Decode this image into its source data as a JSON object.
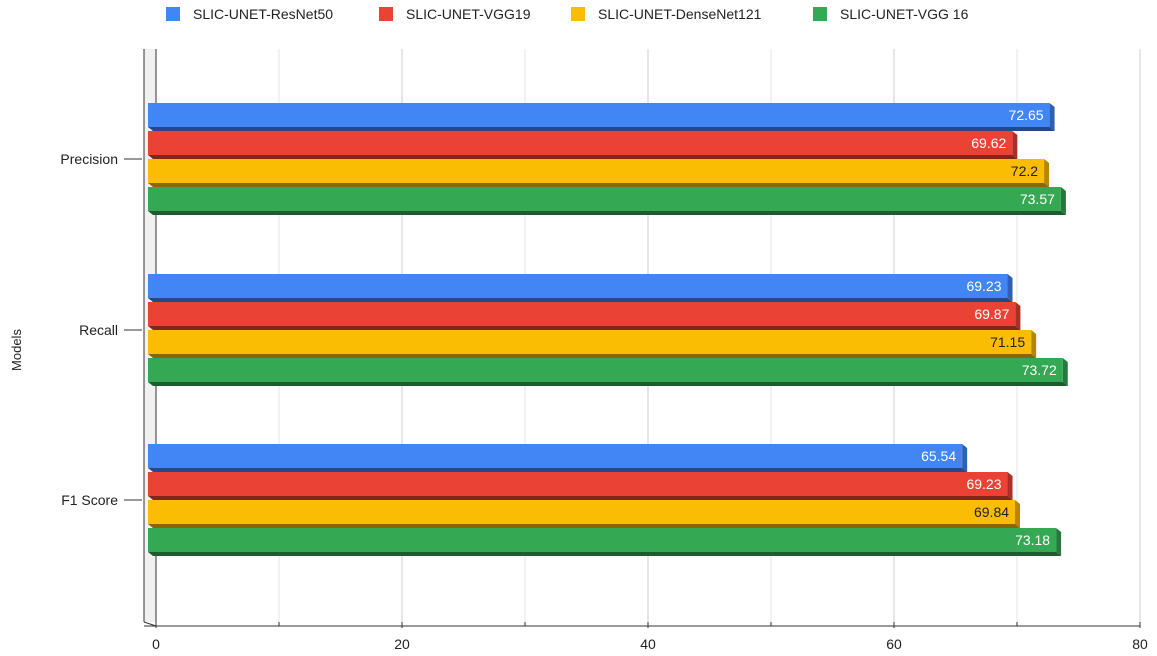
{
  "chart_data": {
    "type": "bar",
    "orientation": "horizontal",
    "style": "3d",
    "categories": [
      "Precision",
      "Recall",
      "F1 Score"
    ],
    "series": [
      {
        "name": "SLIC-UNET-ResNet50",
        "color": "#4285F4",
        "label_color": "#ffffff",
        "values": [
          72.65,
          69.23,
          65.54
        ]
      },
      {
        "name": "SLIC-UNET-VGG19",
        "color": "#EA4335",
        "label_color": "#ffffff",
        "values": [
          69.62,
          69.87,
          69.23
        ]
      },
      {
        "name": "SLIC-UNET-DenseNet121",
        "color": "#FBBC04",
        "label_color": "#202124",
        "values": [
          72.2,
          71.15,
          69.84
        ]
      },
      {
        "name": "SLIC-UNET-VGG 16",
        "color": "#34A853",
        "label_color": "#ffffff",
        "values": [
          73.57,
          73.72,
          73.18
        ]
      }
    ],
    "data_labels": [
      [
        "72.65",
        "69.23",
        "65.54"
      ],
      [
        "69.62",
        "69.87",
        "69.23"
      ],
      [
        "72.2",
        "71.15",
        "69.84"
      ],
      [
        "73.57",
        "73.72",
        "73.18"
      ]
    ],
    "ylabel": "Models",
    "xlabel": "",
    "xlim": [
      0,
      80
    ],
    "x_ticks": [
      0,
      20,
      40,
      60,
      80
    ],
    "x_tick_labels": [
      "0",
      "20",
      "40",
      "60",
      "80"
    ],
    "grid": true,
    "legend_position": "top"
  }
}
